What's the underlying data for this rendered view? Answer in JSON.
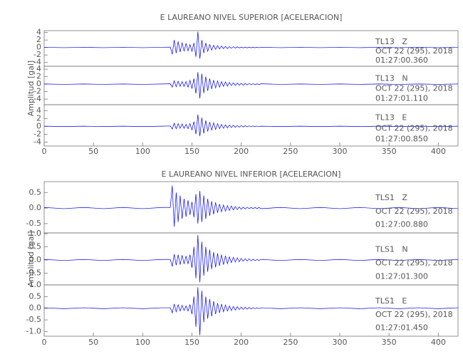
{
  "chart_data": [
    {
      "type": "line",
      "title": "E LAUREANO NIVEL SUPERIOR [ACELERACION]",
      "ylabel": "Amplitud [gal]",
      "xlim": [
        0,
        420
      ],
      "xticks": [
        0,
        50,
        100,
        150,
        200,
        250,
        300,
        350,
        400
      ],
      "x": [
        0,
        20,
        40,
        60,
        80,
        100,
        120,
        128,
        130,
        132,
        134,
        136,
        138,
        140,
        142,
        144,
        146,
        148,
        150,
        152,
        154,
        156,
        158,
        160,
        162,
        164,
        166,
        168,
        170,
        172,
        174,
        176,
        178,
        180,
        182,
        184,
        186,
        188,
        190,
        192,
        194,
        196,
        198,
        200,
        202,
        204,
        206,
        208,
        210,
        212,
        214,
        216,
        218,
        220,
        240,
        260,
        280,
        300,
        320,
        340,
        360,
        380,
        400,
        420
      ],
      "panels": [
        {
          "ylim": [
            -5,
            4.5
          ],
          "yticks": [
            -4,
            -2,
            0,
            2,
            4
          ],
          "station": "TL13   Z",
          "date": "OCT 22 (295), 2018",
          "time": "01:27:00.360",
          "series": [
            {
              "color": "#0000ff",
              "values": [
                0.05,
                -0.05,
                0.05,
                -0.05,
                0.05,
                -0.05,
                0.05,
                0.1,
                -1.8,
                2.0,
                -1.5,
                1.6,
                -1.2,
                1.3,
                -1.0,
                1.1,
                -0.9,
                0.8,
                -1.0,
                1.2,
                -2.5,
                4.2,
                -3.0,
                2.0,
                -1.5,
                1.2,
                -1.0,
                0.8,
                -0.7,
                0.6,
                -0.5,
                0.5,
                -0.4,
                0.4,
                -0.3,
                0.3,
                -0.3,
                0.2,
                -0.2,
                0.2,
                -0.15,
                0.15,
                -0.1,
                0.1,
                -0.1,
                0.1,
                -0.1,
                0.08,
                -0.08,
                0.08,
                -0.06,
                0.06,
                -0.05,
                0.05,
                -0.05,
                0.05,
                -0.05,
                0.05,
                -0.05,
                0.05,
                -0.05,
                0.05,
                -0.05,
                0.05
              ]
            }
          ]
        },
        {
          "ylim": [
            -5.5,
            4.8
          ],
          "yticks": [
            -4,
            -2,
            0,
            2,
            4
          ],
          "station": "TL13   N",
          "date": "OCT 22 (295), 2018",
          "time": "01:27:01.110",
          "series": [
            {
              "color": "#0000ff",
              "values": [
                0.05,
                -0.05,
                0.05,
                -0.05,
                0.05,
                -0.05,
                0.05,
                0.1,
                -0.8,
                0.9,
                -0.7,
                0.8,
                -0.6,
                0.7,
                -0.6,
                0.7,
                -0.8,
                1.0,
                -1.2,
                1.5,
                -2.5,
                3.2,
                -3.8,
                2.8,
                -2.4,
                2.0,
                -1.8,
                1.5,
                -1.3,
                1.1,
                -1.0,
                0.9,
                -0.8,
                0.7,
                -0.6,
                0.6,
                -0.5,
                0.5,
                -0.4,
                0.4,
                -0.35,
                0.3,
                -0.3,
                0.25,
                -0.25,
                0.2,
                -0.2,
                0.2,
                -0.15,
                0.15,
                -0.15,
                0.1,
                -0.1,
                0.1,
                -0.05,
                0.05,
                -0.05,
                0.05,
                -0.05,
                0.05,
                -0.05,
                0.05,
                -0.05,
                0.05
              ]
            }
          ]
        },
        {
          "ylim": [
            -5,
            5.5
          ],
          "yticks": [
            -4,
            -2,
            0,
            2,
            4
          ],
          "station": "TL13   E",
          "date": "OCT 22 (295), 2018",
          "time": "01:27:00.850",
          "series": [
            {
              "color": "#0000ff",
              "values": [
                0.05,
                -0.05,
                0.05,
                -0.05,
                0.05,
                -0.05,
                0.05,
                0.1,
                -0.7,
                0.8,
                -0.6,
                0.7,
                -0.5,
                0.6,
                -0.5,
                0.5,
                -0.6,
                0.7,
                -0.9,
                1.2,
                -2.0,
                3.0,
                -2.5,
                2.2,
                -1.8,
                1.5,
                -1.3,
                1.1,
                -1.0,
                0.9,
                -0.8,
                0.7,
                -0.6,
                0.5,
                -0.5,
                0.4,
                -0.4,
                0.35,
                -0.3,
                0.3,
                -0.25,
                0.2,
                -0.2,
                0.2,
                -0.15,
                0.15,
                -0.1,
                0.1,
                -0.1,
                0.1,
                -0.08,
                0.08,
                -0.05,
                0.05,
                -0.05,
                0.05,
                -0.05,
                0.05,
                -0.05,
                0.05,
                -0.05,
                0.05,
                -0.05,
                0.05
              ]
            }
          ]
        }
      ]
    },
    {
      "type": "line",
      "title": "E LAUREANO NIVEL INFERIOR [ACELERACION]",
      "ylabel": "Amplitud [gal]",
      "xlim": [
        0,
        420
      ],
      "xticks": [
        0,
        50,
        100,
        150,
        200,
        250,
        300,
        350,
        400
      ],
      "x": [
        0,
        20,
        40,
        60,
        80,
        100,
        120,
        128,
        130,
        132,
        134,
        136,
        138,
        140,
        142,
        144,
        146,
        148,
        150,
        152,
        154,
        156,
        158,
        160,
        162,
        164,
        166,
        168,
        170,
        172,
        174,
        176,
        178,
        180,
        182,
        184,
        186,
        188,
        190,
        192,
        194,
        196,
        198,
        200,
        202,
        204,
        206,
        208,
        210,
        212,
        214,
        216,
        218,
        220,
        240,
        260,
        280,
        300,
        320,
        340,
        360,
        380,
        400,
        420
      ],
      "panels": [
        {
          "ylim": [
            -0.8,
            0.85
          ],
          "yticks": [
            -0.5,
            {
              "value": 0,
              "label": "0.0"
            },
            0.5
          ],
          "station": "TLS1   Z",
          "date": "OCT 22 (295), 2018",
          "time": "01:27:00.880",
          "series": [
            {
              "color": "#0000ff",
              "values": [
                0.02,
                -0.02,
                0.02,
                -0.02,
                0.02,
                -0.02,
                0.02,
                0.02,
                0.72,
                -0.6,
                0.5,
                -0.45,
                0.4,
                -0.35,
                0.3,
                -0.28,
                0.25,
                -0.22,
                0.2,
                -0.3,
                0.45,
                -0.5,
                0.55,
                -0.45,
                0.4,
                -0.35,
                0.3,
                -0.25,
                0.22,
                -0.2,
                0.18,
                -0.15,
                0.13,
                -0.12,
                0.1,
                -0.1,
                0.08,
                -0.08,
                0.07,
                -0.06,
                0.05,
                -0.05,
                0.04,
                -0.04,
                0.03,
                -0.03,
                0.03,
                -0.02,
                0.02,
                -0.02,
                0.02,
                -0.02,
                0.02,
                -0.02,
                0.02,
                -0.02,
                0.02,
                -0.02,
                0.02,
                -0.02,
                0.02,
                -0.02,
                0.02,
                -0.02
              ]
            }
          ]
        },
        {
          "ylim": [
            -0.95,
            1.03
          ],
          "yticks": [
            -0.5,
            {
              "value": 0,
              "label": "0.0"
            },
            0.5,
            {
              "value": 1,
              "label": "1.0"
            }
          ],
          "station": "TLS1   N",
          "date": "OCT 22 (295), 2018",
          "time": "01:27:01.300",
          "series": [
            {
              "color": "#0000ff",
              "values": [
                0.02,
                -0.02,
                0.02,
                -0.02,
                0.02,
                -0.02,
                0.02,
                0.02,
                -0.25,
                0.22,
                -0.2,
                0.2,
                -0.18,
                0.18,
                -0.15,
                0.15,
                -0.15,
                0.2,
                -0.3,
                0.5,
                -0.7,
                0.95,
                -0.85,
                0.7,
                -0.6,
                0.5,
                -0.45,
                0.4,
                -0.35,
                0.3,
                -0.28,
                0.25,
                -0.22,
                0.2,
                -0.18,
                0.16,
                -0.14,
                0.12,
                -0.1,
                0.1,
                -0.08,
                0.08,
                -0.07,
                0.06,
                -0.05,
                0.05,
                -0.04,
                0.04,
                -0.03,
                0.03,
                -0.03,
                0.02,
                -0.02,
                0.02,
                -0.02,
                0.02,
                -0.02,
                0.02,
                -0.02,
                0.02,
                -0.02,
                0.02,
                -0.02,
                0.02
              ]
            }
          ]
        },
        {
          "ylim": [
            -1.2,
            1.0
          ],
          "yticks": [
            {
              "value": -1,
              "label": "-1.0"
            },
            -0.5,
            {
              "value": 0,
              "label": "0.0"
            },
            0.5,
            {
              "value": 1,
              "label": "1.0"
            }
          ],
          "station": "TLS1   E",
          "date": "OCT 22 (295), 2018",
          "time": "01:27:01.450",
          "series": [
            {
              "color": "#0000ff",
              "values": [
                0.02,
                -0.02,
                0.02,
                -0.02,
                0.02,
                -0.02,
                0.02,
                0.02,
                -0.2,
                0.18,
                -0.15,
                0.15,
                -0.12,
                0.12,
                -0.1,
                0.1,
                -0.12,
                0.15,
                -0.25,
                0.5,
                -0.8,
                0.9,
                -1.15,
                0.75,
                -0.6,
                0.5,
                -0.45,
                0.4,
                -0.35,
                0.3,
                -0.25,
                0.22,
                -0.2,
                0.18,
                -0.15,
                0.14,
                -0.12,
                0.1,
                -0.1,
                0.08,
                -0.08,
                0.07,
                -0.06,
                0.05,
                -0.05,
                0.04,
                -0.04,
                0.03,
                -0.03,
                0.03,
                -0.02,
                0.02,
                -0.02,
                0.02,
                -0.02,
                0.02,
                -0.02,
                0.02,
                -0.02,
                0.02,
                -0.02,
                0.02,
                -0.02,
                0.02
              ]
            }
          ]
        }
      ]
    }
  ]
}
